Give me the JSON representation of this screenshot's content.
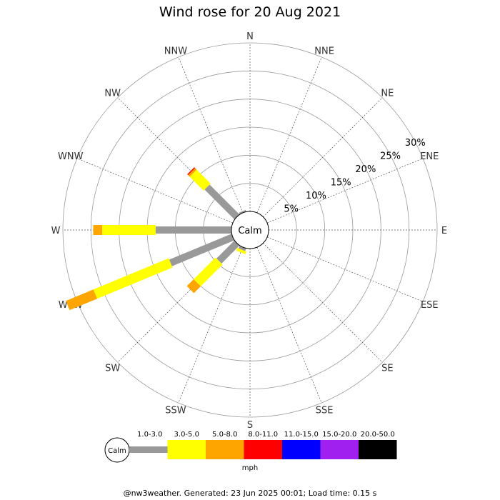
{
  "chart_data": {
    "type": "wind-rose",
    "title": "Wind rose for 20 Aug 2021",
    "directions": [
      "N",
      "NNE",
      "NE",
      "ENE",
      "E",
      "ESE",
      "SE",
      "SSE",
      "S",
      "SSW",
      "SW",
      "WSW",
      "W",
      "WNW",
      "NW",
      "NNW"
    ],
    "direction_angles_deg": [
      0,
      22.5,
      45,
      67.5,
      90,
      112.5,
      135,
      157.5,
      180,
      202.5,
      225,
      247.5,
      270,
      292.5,
      315,
      337.5
    ],
    "ring_labels": [
      "5%",
      "10%",
      "15%",
      "20%",
      "25%",
      "30%"
    ],
    "ring_values": [
      5,
      10,
      15,
      20,
      25,
      30
    ],
    "rmax_percent": 30,
    "calm_label": "Calm",
    "speed_bins": [
      {
        "label": "1.0-3.0",
        "color": "#999999"
      },
      {
        "label": "3.0-5.0",
        "color": "#ffff00"
      },
      {
        "label": "5.0-8.0",
        "color": "#ffa500"
      },
      {
        "label": "8.0-11.0",
        "color": "#ff0000"
      },
      {
        "label": "11.0-15.0",
        "color": "#0000ff"
      },
      {
        "label": "15.0-20.0",
        "color": "#a020f0"
      },
      {
        "label": "20.0-50.0",
        "color": "#000000"
      }
    ],
    "units_label": "mph",
    "data": [
      {
        "direction": "NNW",
        "values": [
          0.3,
          0,
          0,
          0,
          0,
          0,
          0
        ]
      },
      {
        "direction": "NW",
        "values": [
          7.5,
          3.5,
          0.4,
          0.2,
          0,
          0,
          0
        ]
      },
      {
        "direction": "WNW",
        "values": [
          0,
          0,
          0,
          0,
          0,
          0,
          0
        ]
      },
      {
        "direction": "W",
        "values": [
          13.5,
          9.5,
          1.6,
          0,
          0,
          0,
          0
        ]
      },
      {
        "direction": "WSW",
        "values": [
          12,
          14.5,
          5.3,
          0,
          0,
          0,
          0
        ]
      },
      {
        "direction": "SW",
        "values": [
          4.5,
          5.5,
          1.7,
          0,
          0,
          0,
          0
        ]
      },
      {
        "direction": "SSW",
        "values": [
          0.5,
          0.5,
          0,
          0,
          0,
          0,
          0
        ]
      }
    ]
  },
  "footer": "@nw3weather. Generated: 23 Jun 2025 00:01; Load time: 0.15 s"
}
